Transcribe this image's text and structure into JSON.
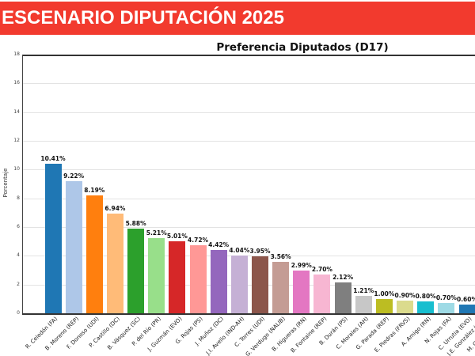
{
  "banner": {
    "title": "ESCENARIO DIPUTACIÓN 2025",
    "bg_color": "#f23a2e",
    "text_color": "#ffffff"
  },
  "chart_data": {
    "type": "bar",
    "title": "Preferencia Diputados (D17)",
    "xlabel": "",
    "ylabel": "Porcentaje",
    "ylim": [
      0,
      18
    ],
    "yticks": [
      0,
      2,
      4,
      6,
      8,
      10,
      12,
      14,
      16,
      18
    ],
    "grid": true,
    "legend": "none",
    "categories": [
      "R. Celedón (FA)",
      "B. Moreno (REP)",
      "F. Donoso (UDI)",
      "P. Castillo (DC)",
      "B. Vásquez (SC)",
      "P. del Río (PR)",
      "J. Guzmán (EVO)",
      "G. Rojas (PS)",
      "J. Muñoz (DC)",
      "J.I. Avello (IND-AH)",
      "C. Torres (UDI)",
      "G. Verdugo (NALIB)",
      "B. Higueras (RN)",
      "B. Fontaine (REP)",
      "B. Durán (PS)",
      "C. Morales (AH)",
      "G. Parada (REP)",
      "E. Piedras (FRVS)",
      "A. Amigo (RN)",
      "N. Rojas (FA)",
      "C. Urrutia (EVO)"
    ],
    "values": [
      10.41,
      9.22,
      8.19,
      6.94,
      5.88,
      5.21,
      5.01,
      4.72,
      4.42,
      4.04,
      3.95,
      3.56,
      2.99,
      2.7,
      2.12,
      1.21,
      1.0,
      0.9,
      0.8,
      0.7,
      0.6
    ],
    "value_labels": [
      "10.41%",
      "9.22%",
      "8.19%",
      "6.94%",
      "5.88%",
      "5.21%",
      "5.01%",
      "4.72%",
      "4.42%",
      "4.04%",
      "3.95%",
      "3.56%",
      "2.99%",
      "2.70%",
      "2.12%",
      "1.21%",
      "1.00%",
      "0.90%",
      "0.80%",
      "0.70%",
      "0.60%"
    ],
    "colors": [
      "#1f77b4",
      "#aec7e8",
      "#ff7f0e",
      "#ffbb78",
      "#2ca02c",
      "#98df8a",
      "#d62728",
      "#ff9896",
      "#9467bd",
      "#c5b0d5",
      "#8c564b",
      "#c49c94",
      "#e377c2",
      "#f7b6d2",
      "#7f7f7f",
      "#c7c7c7",
      "#bcbd22",
      "#dbdb8d",
      "#17becf",
      "#9edae5",
      "#1f77b4"
    ],
    "partial_labels_cut_at_right_edge": [
      "J.E. González (",
      "M. C"
    ]
  }
}
